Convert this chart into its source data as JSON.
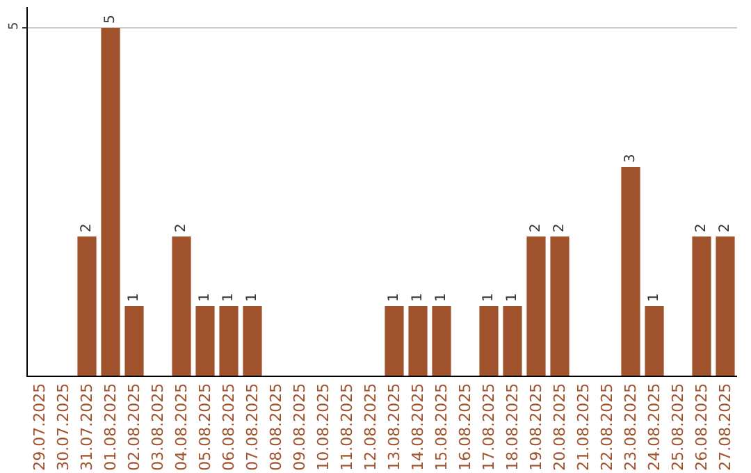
{
  "chart_data": {
    "type": "bar",
    "categories": [
      "29.07.2025",
      "30.07.2025",
      "31.07.2025",
      "01.08.2025",
      "02.08.2025",
      "03.08.2025",
      "04.08.2025",
      "05.08.2025",
      "06.08.2025",
      "07.08.2025",
      "08.08.2025",
      "09.08.2025",
      "10.08.2025",
      "11.08.2025",
      "12.08.2025",
      "13.08.2025",
      "14.08.2025",
      "15.08.2025",
      "16.08.2025",
      "17.08.2025",
      "18.08.2025",
      "19.08.2025",
      "20.08.2025",
      "21.08.2025",
      "22.08.2025",
      "23.08.2025",
      "24.08.2025",
      "25.08.2025",
      "26.08.2025",
      "27.08.2025"
    ],
    "values": [
      0,
      0,
      2,
      5,
      1,
      0,
      2,
      1,
      1,
      1,
      0,
      0,
      0,
      0,
      0,
      1,
      1,
      1,
      0,
      1,
      1,
      2,
      2,
      0,
      0,
      3,
      1,
      0,
      2,
      2
    ],
    "value_labels": [
      null,
      null,
      "2",
      "5",
      "1",
      null,
      "2",
      "1",
      "1",
      "1",
      null,
      null,
      null,
      null,
      null,
      "1",
      "1",
      "1",
      null,
      "1",
      "1",
      "2",
      "2",
      null,
      null,
      "3",
      "1",
      null,
      "2",
      "2"
    ],
    "color": "#a0522d",
    "ylim": [
      0,
      5.3
    ],
    "yticks": [
      5
    ],
    "grid": "y",
    "legend": false
  }
}
